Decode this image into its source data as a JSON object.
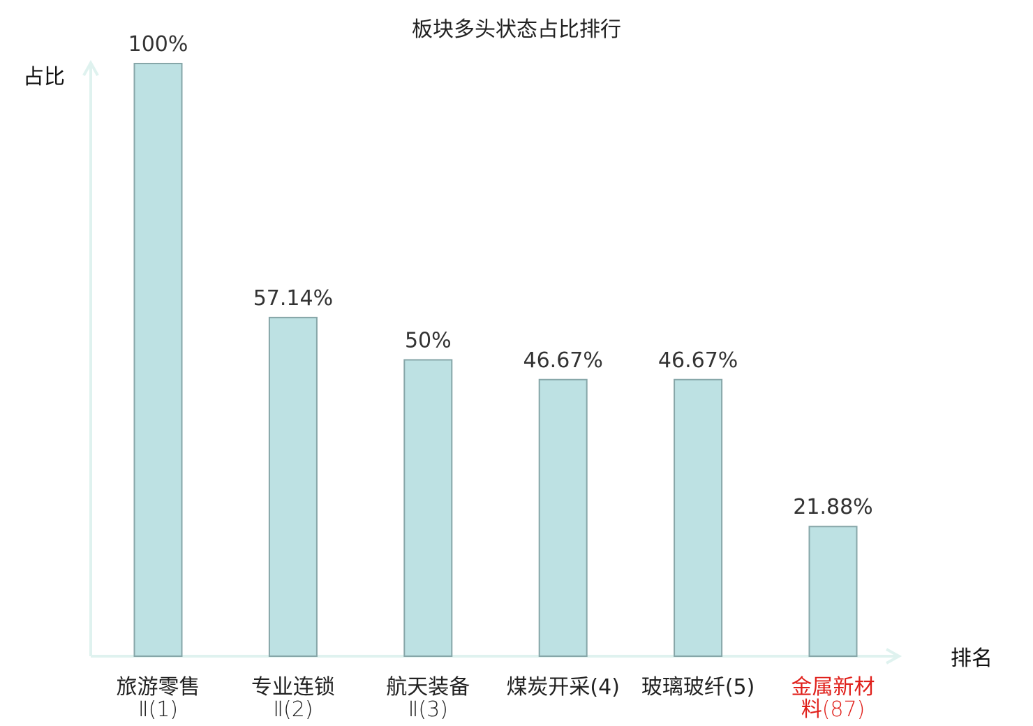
{
  "chart_data": {
    "type": "bar",
    "title": "板块多头状态占比排行",
    "ylabel": "占比",
    "xlabel": "排名",
    "ylim": [
      0,
      100
    ],
    "categories": [
      {
        "line1": "旅游零售",
        "line2": "Ⅱ(1)",
        "highlight": false
      },
      {
        "line1": "专业连锁",
        "line2": "Ⅱ(2)",
        "highlight": false
      },
      {
        "line1": "航天装备",
        "line2": "Ⅱ(3)",
        "highlight": false
      },
      {
        "line1": "煤炭开采(4)",
        "line2": "",
        "highlight": false
      },
      {
        "line1": "玻璃玻纤(5)",
        "line2": "",
        "highlight": false
      },
      {
        "line1": "金属新材",
        "line2": "料(87)",
        "highlight": true
      }
    ],
    "values": [
      100,
      57.14,
      50,
      46.67,
      46.67,
      21.88
    ],
    "value_labels": [
      "100%",
      "57.14%",
      "50%",
      "46.67%",
      "46.67%",
      "21.88%"
    ],
    "grid": false,
    "legend": "none"
  },
  "colors": {
    "bar_fill": "#bde1e3",
    "bar_stroke": "#86a6a8",
    "axis": "#dff2ef",
    "label_normal": "#222222",
    "label_highlight": "#e0201b",
    "value_text": "#333333"
  }
}
